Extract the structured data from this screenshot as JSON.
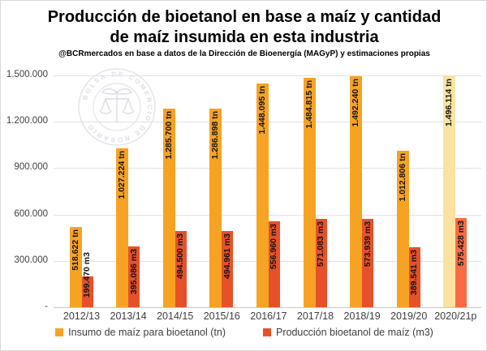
{
  "title": {
    "line1": "Producción de bioetanol en base a maíz y cantidad",
    "line2": "de maíz insumida en esta industria"
  },
  "subtitle": "@BCRmercados en base a datos de la Dirección de Bioenergía (MAGyP) y estimaciones propias",
  "watermark_text": "BOLSA DE COMERCIO DE ROSARIO",
  "colors": {
    "insumo": "#F6A324",
    "insumo_projection": "#FBE2A0",
    "produccion": "#E7512A",
    "produccion_projection": "#F96B43",
    "gridline": "#E1E1E1",
    "axis_text": "#3F3F3F",
    "value_label_text": "#141414"
  },
  "chart_data": {
    "type": "bar",
    "title": "Producción de bioetanol en base a maíz y cantidad de maíz insumida en esta industria",
    "subtitle": "@BCRmercados en base a datos de la Dirección de Bioenergía (MAGyP) y estimaciones propias",
    "categories": [
      "2012/13",
      "2013/14",
      "2014/15",
      "2015/16",
      "2016/17",
      "2017/18",
      "2018/19",
      "2019/20",
      "2020/21p"
    ],
    "projection_category": "2020/21p",
    "series": [
      {
        "name": "Insumo de maíz para bioetanol (tn)",
        "unit": "tn",
        "color": "#F6A324",
        "projection_color": "#FBE2A0",
        "values": [
          518622,
          1027224,
          1285700,
          1286898,
          1448095,
          1484815,
          1492240,
          1012806,
          1496114
        ],
        "value_labels": [
          "518.622 tn",
          "1.027.224 tn",
          "1.285.700 tn",
          "1.286.898 tn",
          "1.448.095 tn",
          "1.484.815 tn",
          "1.492.240 tn",
          "1.012.806 tn",
          "1.496.114 tn"
        ]
      },
      {
        "name": "Producción bioetanol de maíz (m3)",
        "unit": "m3",
        "color": "#E7512A",
        "projection_color": "#F96B43",
        "values": [
          199470,
          395086,
          494500,
          494961,
          556960,
          571083,
          573939,
          389541,
          575428
        ],
        "value_labels": [
          "199.470 m3",
          "395.086 m3",
          "494.500 m3",
          "494.961 m3",
          "556.960 m3",
          "571.083 m3",
          "573.939 m3",
          "389.541 m3",
          "575.428 m3"
        ]
      }
    ],
    "ylim": [
      0,
      1500000
    ],
    "ytick_labels": [
      "1.500.000",
      "1.200.000",
      "900.000",
      "600.000",
      "300.000",
      "-"
    ],
    "grid": true,
    "legend_position": "bottom",
    "value_label_rotation": "vertical"
  }
}
